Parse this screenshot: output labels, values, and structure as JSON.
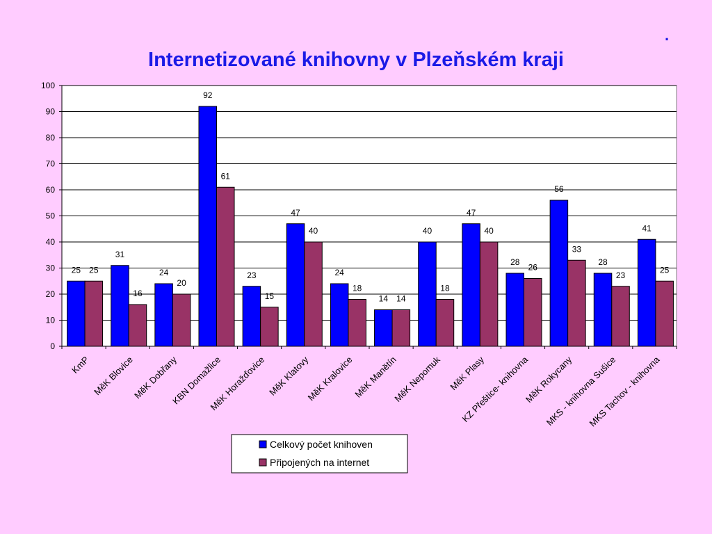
{
  "slide": {
    "corner_mark": ".",
    "title": "Internetizované knihovny v Plzeňském kraji"
  },
  "chart_data": {
    "type": "bar",
    "title": "Internetizované knihovny v Plzeňském kraji",
    "xlabel": "",
    "ylabel": "",
    "ylim": [
      0,
      100
    ],
    "yticks": [
      0,
      10,
      20,
      30,
      40,
      50,
      60,
      70,
      80,
      90,
      100
    ],
    "grid": true,
    "legend_position": "bottom",
    "categories": [
      "KmP",
      "MěK Blovice",
      "MěK Dobřany",
      "KBN Domažlice",
      "MěK Horažďovice",
      "MěK Klatovy",
      "MěK Kralovice",
      "MěK Manětín",
      "MěK Nepomuk",
      "MěK Plasy",
      "KZ Přeštice- knihovna",
      "MěK Rokycany",
      "MKS -  knihovna Sušice",
      "MKS Tachov - knihovna"
    ],
    "series": [
      {
        "name": "Celkový počet knihoven",
        "color": "#0000ff",
        "values": [
          25,
          31,
          24,
          92,
          23,
          47,
          24,
          14,
          40,
          47,
          28,
          56,
          28,
          41
        ]
      },
      {
        "name": "Připojených na internet",
        "color": "#993366",
        "values": [
          25,
          16,
          20,
          61,
          15,
          40,
          18,
          14,
          18,
          40,
          26,
          33,
          23,
          25
        ]
      }
    ]
  }
}
